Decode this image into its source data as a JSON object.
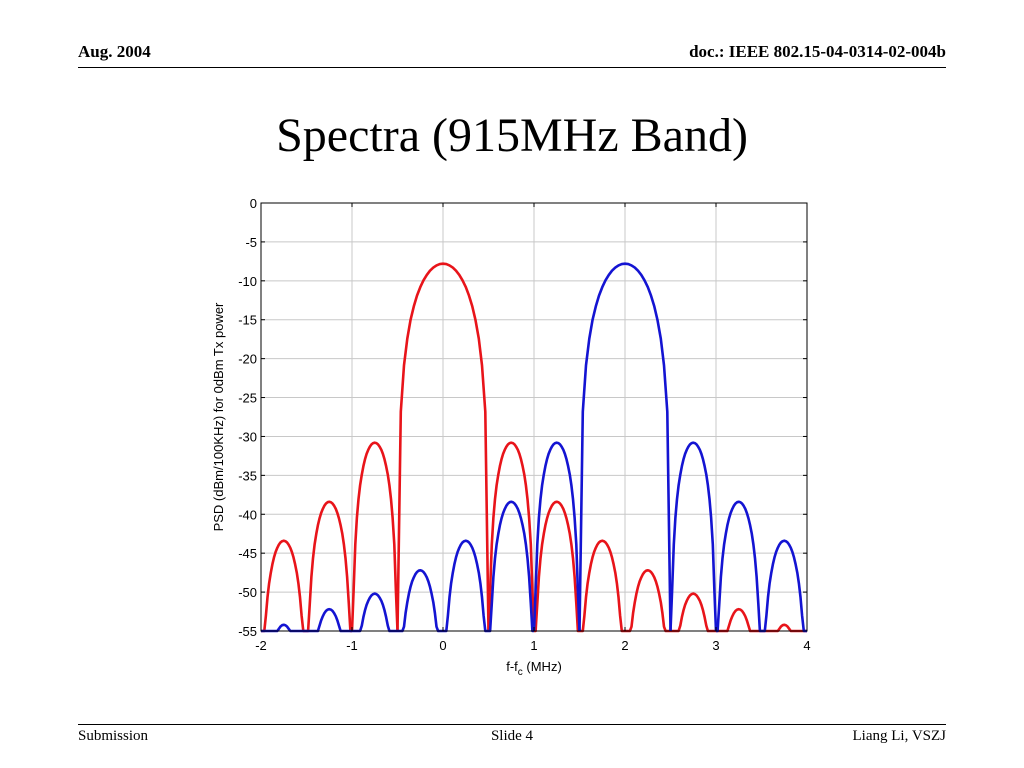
{
  "header": {
    "date": "Aug.  2004",
    "doc_id": "doc.: IEEE 802.15-04-0314-02-004b"
  },
  "slide_title": "Spectra (915MHz Band)",
  "footer": {
    "left": "Submission",
    "center": "Slide 4",
    "right": "Liang Li, VSZJ"
  },
  "chart_data": {
    "type": "line",
    "title": "",
    "xlabel_main": "f-f",
    "xlabel_sub": "c",
    "xlabel_tail": " (MHz)",
    "ylabel": "PSD (dBm/100KHz) for 0dBm  Tx power",
    "xlim": [
      -2,
      4
    ],
    "ylim": [
      -55,
      0
    ],
    "xticks": [
      "-2",
      "-1",
      "0",
      "1",
      "2",
      "3",
      "4"
    ],
    "yticks": [
      "0",
      "-5",
      "-10",
      "-15",
      "-20",
      "-25",
      "-30",
      "-35",
      "-40",
      "-45",
      "-50",
      "-55"
    ],
    "grid": true,
    "series": [
      {
        "center": 0,
        "color": "#e8141a",
        "peak_dB": -7.8,
        "null_spacing_MHz": 0.5,
        "sidelobe_peaks_dB": [
          -30.8,
          -38.4,
          -43.4,
          -47.2,
          -50.2,
          -52.2,
          -54.2
        ]
      },
      {
        "center": 2,
        "color": "#1414d2",
        "peak_dB": -7.8,
        "null_spacing_MHz": 0.5,
        "sidelobe_peaks_dB": [
          -30.8,
          -38.4,
          -43.4,
          -47.2,
          -50.2,
          -52.2,
          -54.2
        ]
      }
    ]
  }
}
